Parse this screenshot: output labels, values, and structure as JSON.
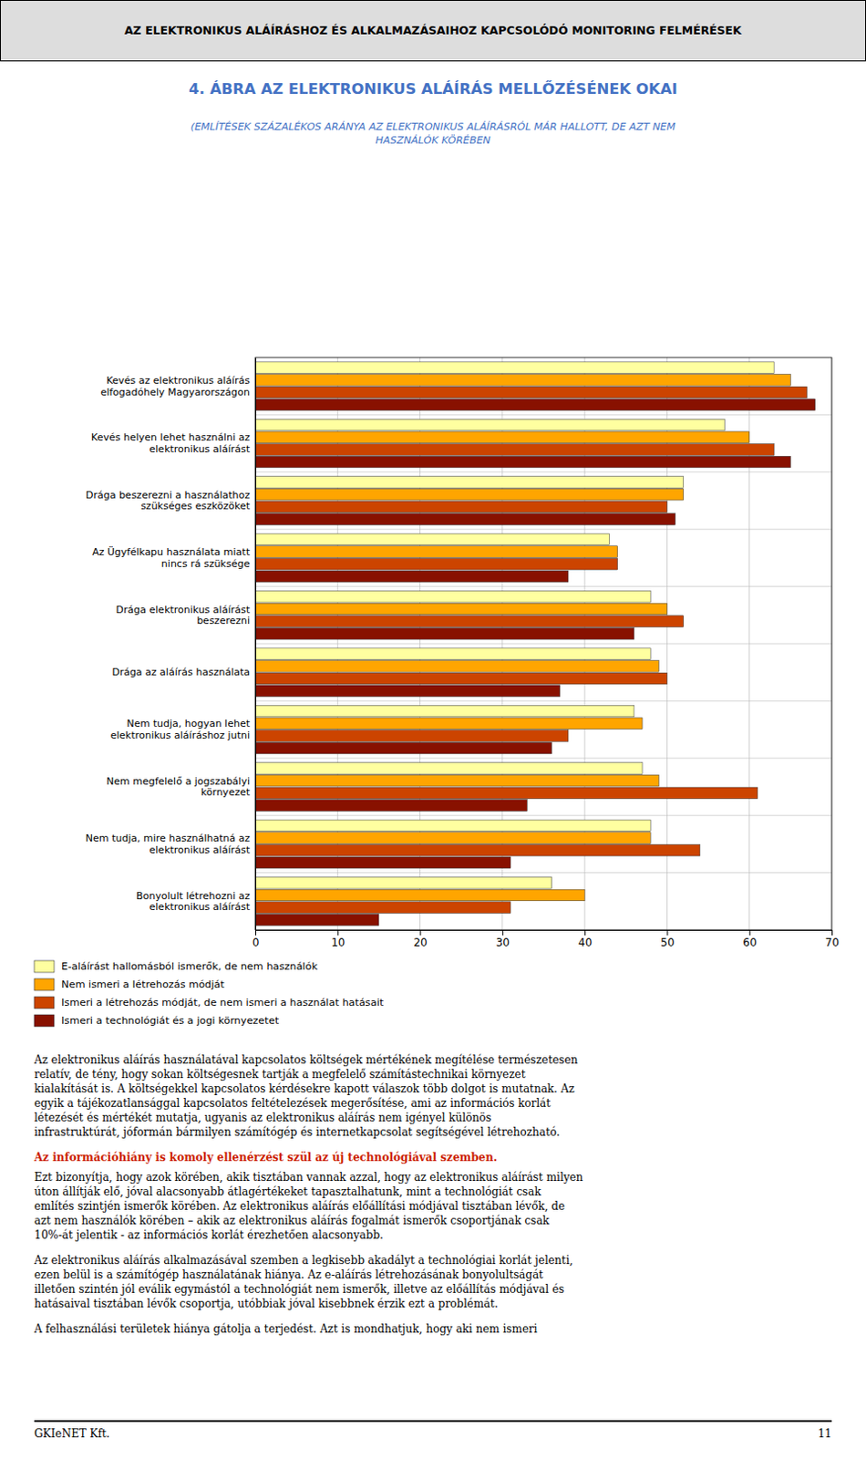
{
  "header": "AZ ELEKTRONIKUS ALÁÍRÁSHOZ ÉS ALKALMAZÁSAIHOZ KAPCSOLÓDÓ MONITORING FELMÉRÉSEK",
  "chart_data": {
    "type": "bar",
    "orientation": "horizontal",
    "title": "4. ÁBRA AZ ELEKTRONIKUS ALÁÍRÁS MELLŐZÉSÉNEK OKAI",
    "subtitle": "(EMLÍTÉSEK SZÁZALÉKOS ARÁNYA AZ ELEKTRONIKUS ALÁÍRÁSRÓL MÁR HALLOTT, DE AZT NEM\nHASZNÁLÓK KÖRÉBEN",
    "categories": [
      "Kevés az elektronikus aláírás\nelfogadóhely Magyarországon",
      "Kevés helyen lehet használni az\nelektronikus aláírást",
      "Drága beszerezni a használathoz\nszükséges eszközöket",
      "Az Ügyfélkapu használata miatt\nnincs rá szüksége",
      "Drága elektronikus aláírást\nbeszerezni",
      "Drága az aláírás használata",
      "Nem tudja, hogyan lehet\nelektronikus aláíráshoz jutni",
      "Nem megfelelő a jogszabályi\nkörnyezet",
      "Nem tudja, mire használhatná az\nelektronikus aláírást",
      "Bonyolult létrehozni az\nelektronikus aláírást"
    ],
    "series": [
      {
        "name": "E-aláírást hallomásból ismerők, de nem használók",
        "color": "#FFFFA0",
        "values": [
          63,
          57,
          52,
          43,
          48,
          48,
          46,
          47,
          48,
          36
        ]
      },
      {
        "name": "Nem ismeri a létrehozás módját",
        "color": "#FFA500",
        "values": [
          65,
          60,
          52,
          44,
          50,
          49,
          47,
          49,
          48,
          40
        ]
      },
      {
        "name": "Ismeri a létrehozás módját, de nem ismeri a használat hatásait",
        "color": "#CC4400",
        "values": [
          67,
          63,
          50,
          44,
          52,
          50,
          38,
          61,
          54,
          31
        ]
      },
      {
        "name": "Ismeri a technológiát és a jogi környezetet",
        "color": "#881100",
        "values": [
          68,
          65,
          51,
          38,
          46,
          37,
          36,
          33,
          31,
          15
        ]
      }
    ],
    "xlim": [
      0,
      70
    ],
    "xticks": [
      0,
      10,
      20,
      30,
      40,
      50,
      60,
      70
    ],
    "grid": true,
    "legend": "bottom"
  },
  "paragraphs": [
    {
      "text": "Az elektronikus aláírás használatával kapcsolatos költségek mértékének megítélése természetesen\nrelatív, de tény, hogy sokan költségesnek tartják a megfelelő számítástechnikai környezet\nkialakítását is. A költségekkel kapcsolatos kérdésekre kapott válaszok több dolgot is mutatnak. Az\negyik a tájékozatlansággal kapcsolatos feltételezések megerősítése, ami az információs korlát\nlétezését és mértékét mutatja, ugyanis az elektronikus aláírás nem igényel különös\ninfrastruktúrát, jóformán bármilyen számítógép és internetkapcsolat segítségével létrehozható."
    },
    {
      "heading": "Az információhiány is komoly ellenérzést szül az új technológiával szemben.",
      "text": "Ezt bizonyítja, hogy azok körében, akik tisztában vannak azzal, hogy az elektronikus aláírást milyen\núton állítják elő, jóval alacsonyabb átlagértékeket tapasztalhatunk, mint a technológiát csak\nemlítés szintjén ismerők körében. Az elektronikus aláírás előállítási módjával tisztában lévők, de\nazt nem használók körében – akik az elektronikus aláírás fogalmát ismerők csoportjának csak\n10%-át jelentik - az információs korlát érezhetően alacsonyabb."
    },
    {
      "text": "Az elektronikus aláírás alkalmazásával szemben a legkisebb akadályt a technológiai korlát jelenti,\nezen belül is a számítógép használatának hiánya. Az e-aláírás létrehozásának bonyolultságát\nilletően szintén jól eválik egymástól a technológiát nem ismerők, illetve az előállítás módjával és\nhatásaival tisztában lévők csoportja, utóbbiak jóval kisebbnek érzik ezt a problémát."
    },
    {
      "text": "A felhasználási területek hiánya gátolja a terjedést. Azt is mondhatjuk, hogy aki nem ismeri"
    }
  ],
  "footer_left": "GKIeNET Kft.",
  "footer_right": "11"
}
